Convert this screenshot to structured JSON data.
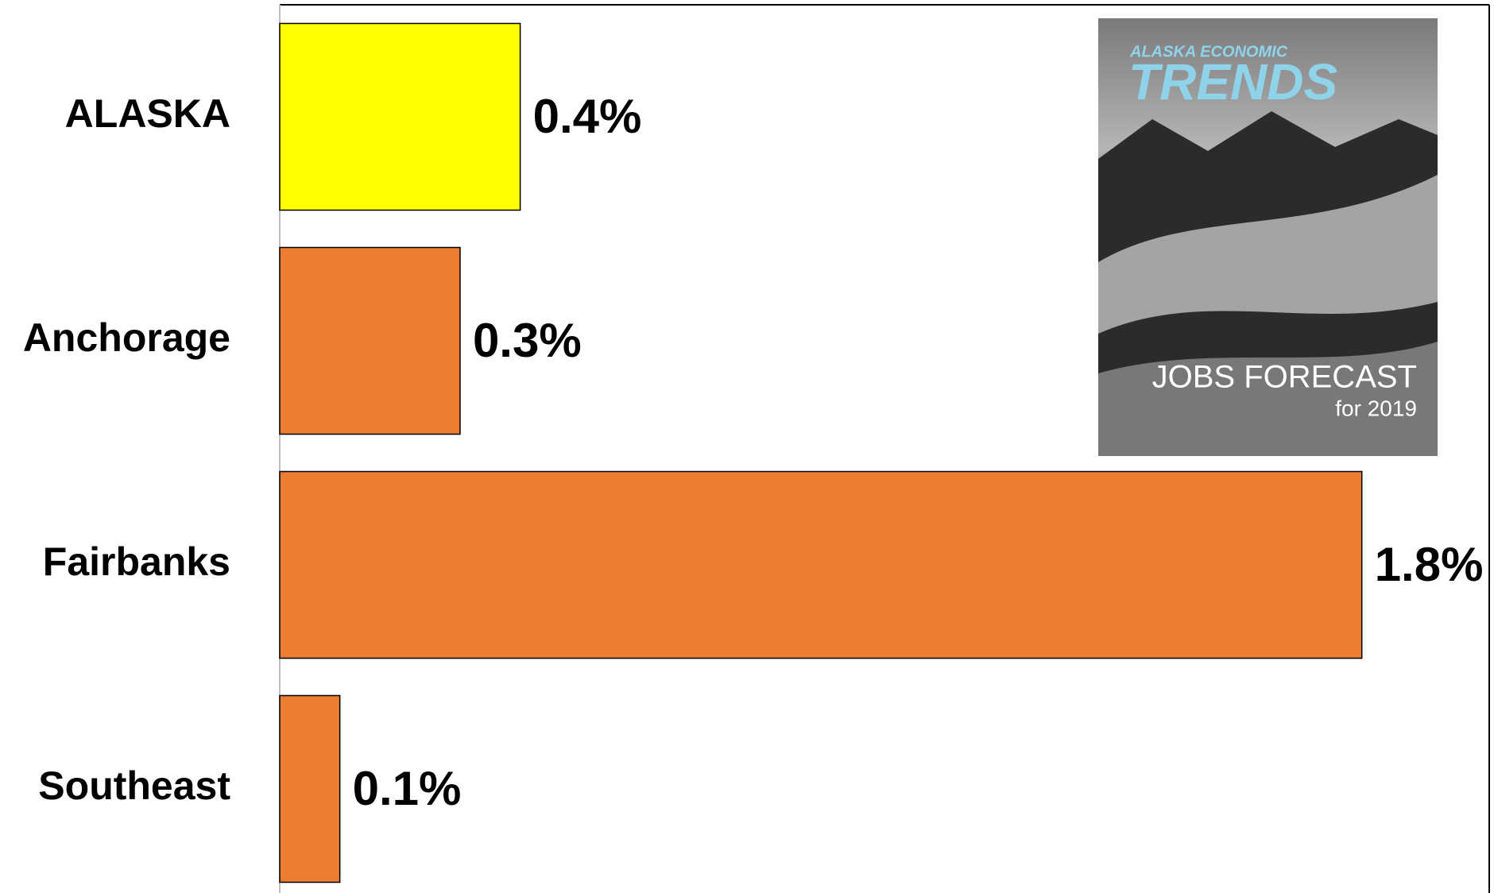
{
  "chart_data": {
    "type": "hbar",
    "categories": [
      "ALASKA",
      "Anchorage",
      "Fairbanks",
      "Southeast"
    ],
    "values": [
      0.4,
      0.3,
      1.8,
      0.1
    ],
    "value_labels": [
      "0.4%",
      "0.3%",
      "1.8%",
      "0.1%"
    ],
    "colors": [
      "#ffff00",
      "#ed7d31",
      "#ed7d31",
      "#ed7d31"
    ],
    "xlim": [
      0,
      2
    ],
    "inset": {
      "kicker": "ALASKA ECONOMIC",
      "title": "TRENDS",
      "headline": "JOBS FORECAST",
      "subline": "for 2019"
    }
  }
}
